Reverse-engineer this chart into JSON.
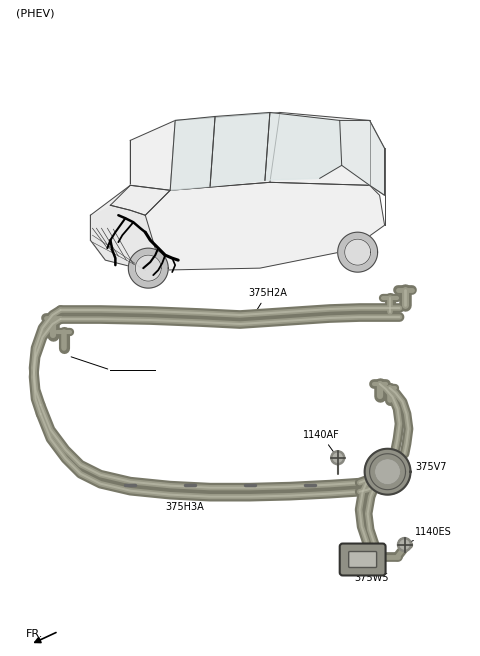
{
  "bg_color": "#ffffff",
  "label_phev": "(PHEV)",
  "label_fr": "FR.",
  "label_375H2A": "375H2A",
  "label_375H3A": "375H3A",
  "label_375V7": "375V7",
  "label_375W5": "375W5",
  "label_1140AF": "1140AF",
  "label_1140ES": "1140ES",
  "tube_dark": "#787868",
  "tube_mid": "#9a9a88",
  "tube_light": "#c0c0ae",
  "car_line": "#444444",
  "font_size": 7,
  "font_size_phev": 8,
  "font_size_fr": 8
}
